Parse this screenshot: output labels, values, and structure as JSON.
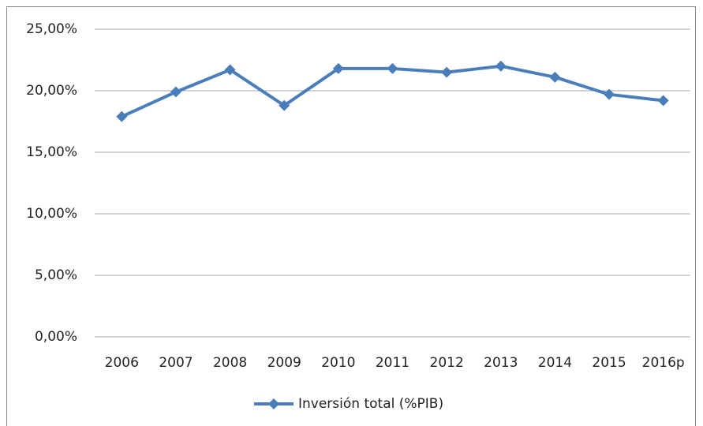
{
  "chart_data": {
    "type": "line",
    "categories": [
      "2006",
      "2007",
      "2008",
      "2009",
      "2010",
      "2011",
      "2012",
      "2013",
      "2014",
      "2015",
      "2016p"
    ],
    "series": [
      {
        "name": "Inversión total (%PIB)",
        "color": "#4a7ebb",
        "values": [
          17.9,
          19.9,
          21.7,
          18.8,
          21.8,
          21.8,
          21.5,
          22.0,
          21.1,
          19.7,
          19.2
        ]
      }
    ],
    "ylim": [
      0,
      25
    ],
    "yticks": [
      {
        "value": 0,
        "label": "0,00%"
      },
      {
        "value": 5,
        "label": "5,00%"
      },
      {
        "value": 10,
        "label": "10,00%"
      },
      {
        "value": 15,
        "label": "15,00%"
      },
      {
        "value": 20,
        "label": "20,00%"
      },
      {
        "value": 25,
        "label": "25,00%"
      }
    ],
    "grid": true,
    "legend": "bottom"
  }
}
